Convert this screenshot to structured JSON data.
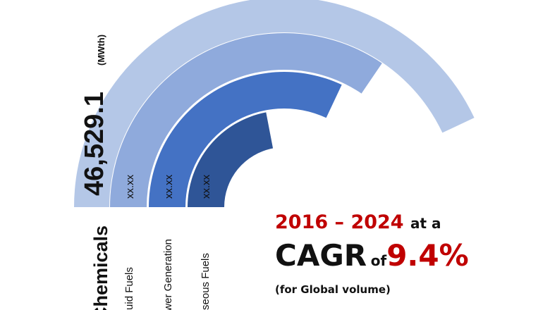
{
  "chart_data": {
    "type": "radial-bar",
    "series": [
      {
        "label": "Chemicals",
        "value_text": "46,529.1",
        "unit": "(MWth)",
        "color": "#b4c7e7"
      },
      {
        "label": "Liquid Fuels",
        "value_text": "xx.xx",
        "color": "#8faadc"
      },
      {
        "label": "Power Generation",
        "value_text": "xx.xx",
        "color": "#4472c4"
      },
      {
        "label": "Gaseous Fuels",
        "value_text": "xx.xx",
        "color": "#2f5597"
      }
    ],
    "ring_fraction_of_semicircle": [
      0.86,
      0.69,
      0.64,
      0.44
    ]
  },
  "annotation": {
    "period": "2016 – 2024",
    "at_a": "at a",
    "cagr": "CAGR",
    "of": "of",
    "rate": "9.4%",
    "note": "(for Global volume)"
  }
}
